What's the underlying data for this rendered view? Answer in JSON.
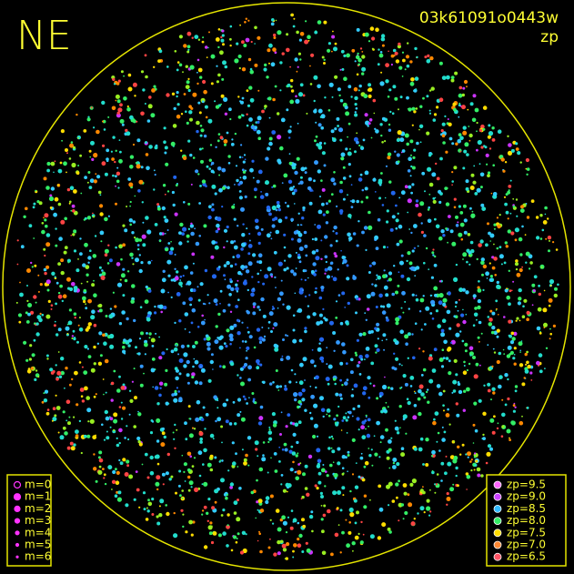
{
  "header": {
    "title": "NE",
    "image_id": "03k61091o0443w",
    "subtitle": "zp"
  },
  "magnitude_legend": {
    "labels": [
      "m=0",
      "m=1",
      "m=2",
      "m=3",
      "m=4",
      "m=5",
      "m=6"
    ]
  },
  "zp_legend": {
    "labels": [
      "zp=9.5",
      "zp=9.0",
      "zp=8.5",
      "zp=8.0",
      "zp=7.5",
      "zp=7.0",
      "zp=6.5"
    ]
  }
}
